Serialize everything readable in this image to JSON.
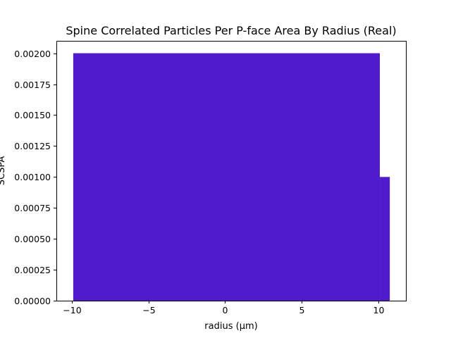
{
  "chart_data": {
    "type": "bar",
    "title": "Spine Correlated Particles Per P-face Area By Radius (Real)",
    "xlabel": "radius (μm)",
    "ylabel": "SCSPA",
    "xlim": [
      -11,
      11.8
    ],
    "ylim": [
      0,
      0.0021
    ],
    "xticks": [
      {
        "value": -10,
        "label": "−10"
      },
      {
        "value": -5,
        "label": "−5"
      },
      {
        "value": 0,
        "label": "0"
      },
      {
        "value": 5,
        "label": "5"
      },
      {
        "value": 10,
        "label": "10"
      }
    ],
    "yticks": [
      {
        "value": 0,
        "label": "0.00000"
      },
      {
        "value": 0.00025,
        "label": "0.00025"
      },
      {
        "value": 0.0005,
        "label": "0.00050"
      },
      {
        "value": 0.00075,
        "label": "0.00075"
      },
      {
        "value": 0.001,
        "label": "0.00100"
      },
      {
        "value": 0.00125,
        "label": "0.00125"
      },
      {
        "value": 0.0015,
        "label": "0.00150"
      },
      {
        "value": 0.00175,
        "label": "0.00175"
      },
      {
        "value": 0.002,
        "label": "0.00200"
      }
    ],
    "bars": [
      {
        "x_start": -9.9,
        "x_end": 10.1,
        "value": 0.002
      },
      {
        "x_start": 10.1,
        "x_end": 10.75,
        "value": 0.001
      }
    ],
    "color": "#501ccb",
    "grid": false,
    "legend": "none"
  }
}
